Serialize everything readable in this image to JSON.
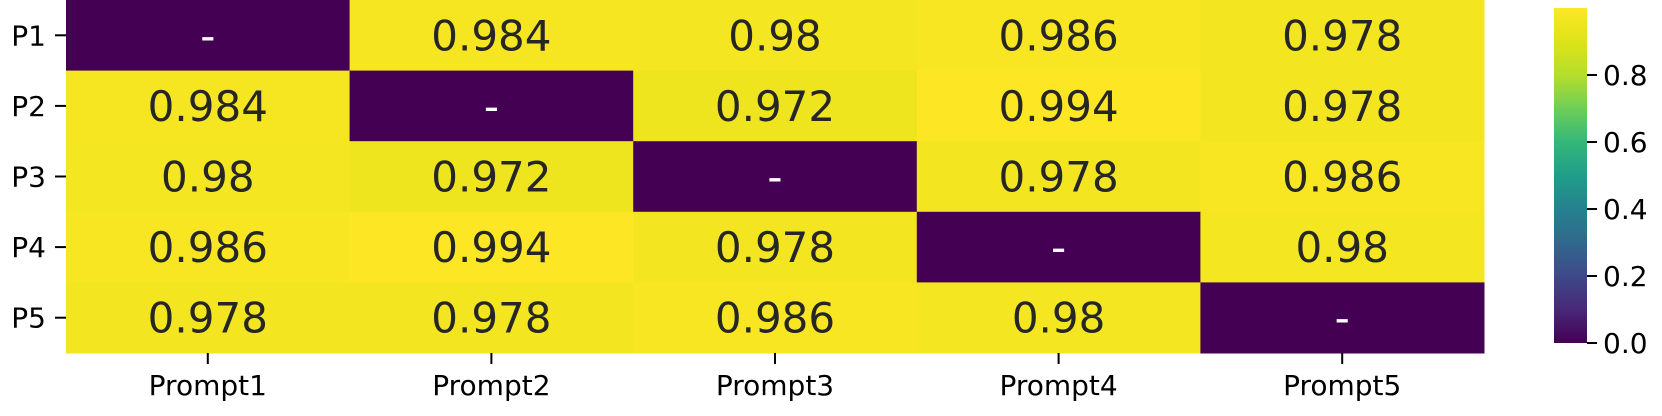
{
  "chart_data": {
    "type": "heatmap",
    "title": "",
    "xlabel": "",
    "ylabel": "",
    "x_categories": [
      "Prompt1",
      "Prompt2",
      "Prompt3",
      "Prompt4",
      "Prompt5"
    ],
    "y_categories": [
      "P1",
      "P2",
      "P3",
      "P4",
      "P5"
    ],
    "values": [
      [
        0,
        0.984,
        0.98,
        0.986,
        0.978
      ],
      [
        0.984,
        0,
        0.972,
        0.994,
        0.978
      ],
      [
        0.98,
        0.972,
        0,
        0.978,
        0.986
      ],
      [
        0.986,
        0.994,
        0.978,
        0,
        0.98
      ],
      [
        0.978,
        0.978,
        0.986,
        0.98,
        0
      ]
    ],
    "cell_labels": [
      [
        "-",
        "0.984",
        "0.98",
        "0.986",
        "0.978"
      ],
      [
        "0.984",
        "-",
        "0.972",
        "0.994",
        "0.978"
      ],
      [
        "0.98",
        "0.972",
        "-",
        "0.978",
        "0.986"
      ],
      [
        "0.986",
        "0.994",
        "0.978",
        "-",
        "0.98"
      ],
      [
        "0.978",
        "0.978",
        "0.986",
        "0.98",
        "-"
      ]
    ],
    "colormap": "viridis",
    "color_range": [
      0,
      1
    ],
    "colorbar_ticks": [
      {
        "value": 0.0,
        "label": "0.0"
      },
      {
        "value": 0.2,
        "label": "0.2"
      },
      {
        "value": 0.4,
        "label": "0.4"
      },
      {
        "value": 0.6,
        "label": "0.6"
      },
      {
        "value": 0.8,
        "label": "0.8"
      }
    ],
    "colors": {
      "high": "#f3e621",
      "low": "#440154",
      "annotation_dark": "#262626",
      "annotation_light": "#ffffff",
      "axis": "#000000"
    },
    "grid": false,
    "legend": "colorbar-right"
  }
}
